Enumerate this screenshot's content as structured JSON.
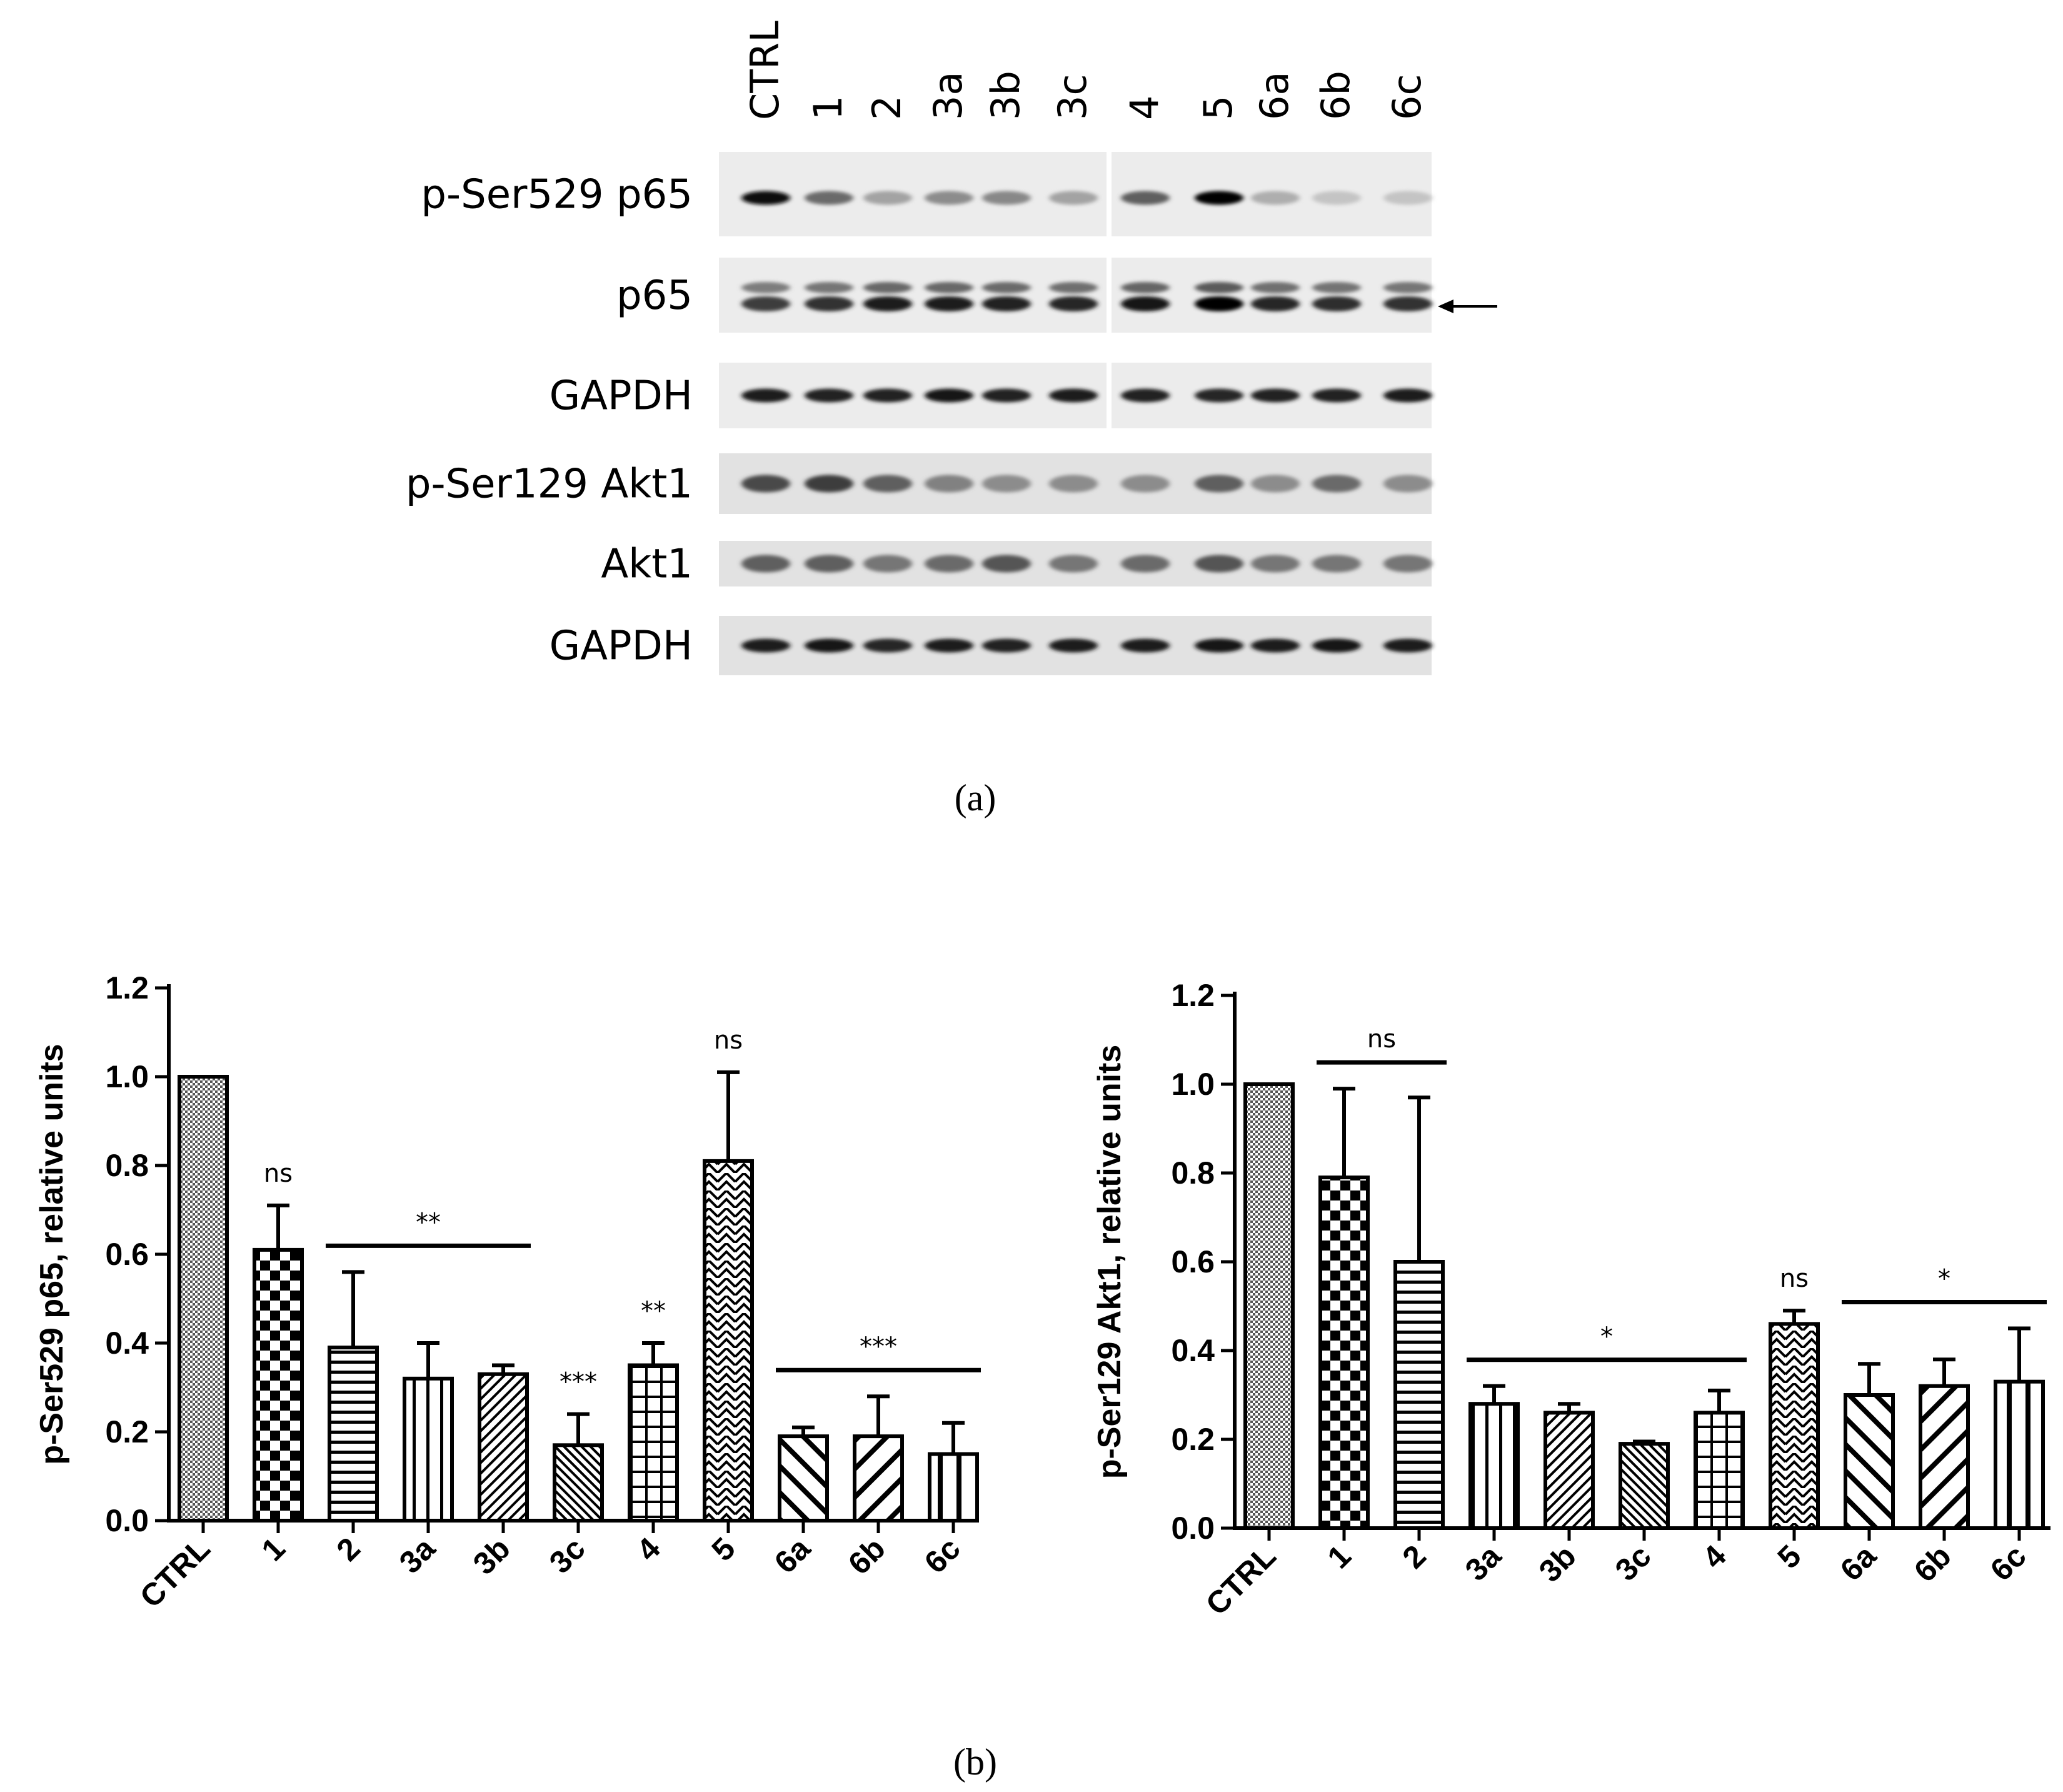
{
  "figure": {
    "panel_a_label": "(a)",
    "panel_b_label": "(b)"
  },
  "blot": {
    "lanes": [
      "CTRL",
      "1",
      "2",
      "3a",
      "3b",
      "3c",
      "4",
      "5",
      "6a",
      "6b",
      "6c"
    ],
    "rows": [
      {
        "label": "p-Ser529 p65",
        "intensity": [
          0.95,
          0.55,
          0.3,
          0.4,
          0.42,
          0.3,
          0.6,
          1.0,
          0.25,
          0.15,
          0.15
        ]
      },
      {
        "label": "p65",
        "intensity": [
          0.75,
          0.8,
          0.9,
          0.9,
          0.88,
          0.86,
          0.92,
          1.0,
          0.85,
          0.82,
          0.8
        ]
      },
      {
        "label": "GAPDH",
        "intensity": [
          0.9,
          0.88,
          0.88,
          0.92,
          0.88,
          0.9,
          0.88,
          0.85,
          0.88,
          0.88,
          0.9
        ]
      },
      {
        "label": "p-Ser129 Akt1",
        "intensity": [
          0.7,
          0.75,
          0.6,
          0.45,
          0.4,
          0.4,
          0.4,
          0.6,
          0.4,
          0.55,
          0.4
        ]
      },
      {
        "label": "Akt1",
        "intensity": [
          0.6,
          0.6,
          0.5,
          0.55,
          0.65,
          0.5,
          0.55,
          0.65,
          0.5,
          0.5,
          0.5
        ]
      },
      {
        "label": "GAPDH",
        "intensity": [
          0.9,
          0.92,
          0.85,
          0.9,
          0.88,
          0.9,
          0.9,
          0.92,
          0.9,
          0.92,
          0.9
        ]
      }
    ],
    "arrow_row": 1
  },
  "chart_data": [
    {
      "type": "bar",
      "ylabel": "p-Ser529 p65, relative units",
      "ylim": [
        0,
        1.2
      ],
      "yticks": [
        "0.0",
        "0.2",
        "0.4",
        "0.6",
        "0.8",
        "1.0",
        "1.2"
      ],
      "categories": [
        "CTRL",
        "1",
        "2",
        "3a",
        "3b",
        "3c",
        "4",
        "5",
        "6a",
        "6b",
        "6c"
      ],
      "values": [
        1.0,
        0.61,
        0.39,
        0.32,
        0.33,
        0.17,
        0.35,
        0.81,
        0.19,
        0.19,
        0.15
      ],
      "errors": [
        0.0,
        0.1,
        0.17,
        0.08,
        0.02,
        0.07,
        0.05,
        0.2,
        0.02,
        0.09,
        0.07
      ],
      "patterns": [
        "fine",
        "checker",
        "hlines",
        "vlines",
        "diag-fwd",
        "diag-back",
        "grid",
        "zigzag",
        "wide-back",
        "wide-fwd",
        "wide-v"
      ],
      "annotations": [
        {
          "text": "ns",
          "over": [
            1
          ]
        },
        {
          "text": "**",
          "over": [
            2,
            3,
            4
          ],
          "bar": true
        },
        {
          "text": "***",
          "over": [
            5
          ]
        },
        {
          "text": "**",
          "over": [
            6
          ]
        },
        {
          "text": "ns",
          "over": [
            7
          ]
        },
        {
          "text": "***",
          "over": [
            8,
            9,
            10
          ],
          "bar": true
        }
      ]
    },
    {
      "type": "bar",
      "ylabel": "p-Ser129 Akt1, relative units",
      "ylim": [
        0,
        1.2
      ],
      "yticks": [
        "0.0",
        "0.2",
        "0.4",
        "0.6",
        "0.8",
        "1.0",
        "1.2"
      ],
      "categories": [
        "CTRL",
        "1",
        "2",
        "3a",
        "3b",
        "3c",
        "4",
        "5",
        "6a",
        "6b",
        "6c"
      ],
      "values": [
        1.0,
        0.79,
        0.6,
        0.28,
        0.26,
        0.19,
        0.26,
        0.46,
        0.3,
        0.32,
        0.33
      ],
      "errors": [
        0.0,
        0.2,
        0.37,
        0.04,
        0.02,
        0.005,
        0.05,
        0.03,
        0.07,
        0.06,
        0.12
      ],
      "patterns": [
        "fine",
        "checker",
        "hlines",
        "vlines",
        "diag-fwd",
        "diag-back",
        "grid",
        "zigzag",
        "wide-back",
        "wide-fwd",
        "wide-v"
      ],
      "annotations": [
        {
          "text": "ns",
          "over": [
            1,
            2
          ],
          "bar": true
        },
        {
          "text": "*",
          "over": [
            3,
            4,
            5,
            6
          ],
          "bar": true
        },
        {
          "text": "ns",
          "over": [
            7
          ]
        },
        {
          "text": "*",
          "over": [
            8,
            9,
            10
          ],
          "bar": true
        }
      ]
    }
  ]
}
